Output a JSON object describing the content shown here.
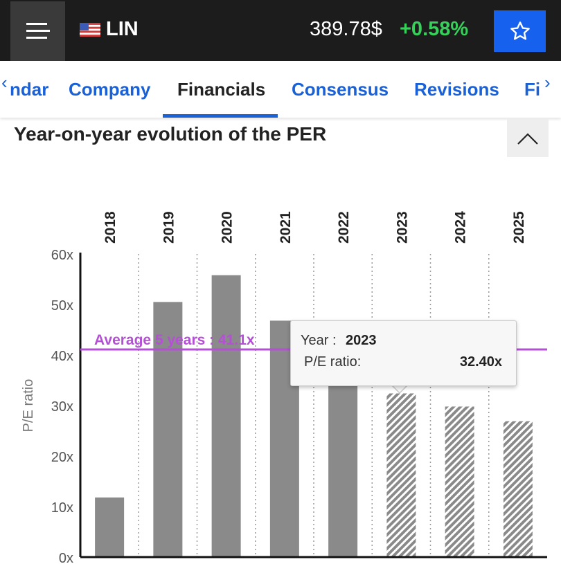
{
  "header": {
    "ticker": "LIN",
    "price": "389.78$",
    "change": "+0.58%"
  },
  "tabs": {
    "partial_left": "ndar",
    "items": [
      "Company",
      "Financials",
      "Consensus",
      "Revisions"
    ],
    "partial_right": "Fi",
    "active": "Financials"
  },
  "section": {
    "title": "Year-on-year evolution of the PER"
  },
  "tooltip": {
    "year_label": "Year :",
    "year": "2023",
    "ratio_label": "P/E ratio:",
    "ratio": "32.40x"
  },
  "colors": {
    "accent_blue": "#1662ef",
    "positive_green": "#36d05a",
    "bar_gray": "#8a8a8a",
    "average_purple": "#b44fd6"
  },
  "chart_data": {
    "type": "bar",
    "ylabel": "P/E ratio",
    "ylim": [
      0,
      60
    ],
    "yticks": [
      "0x",
      "10x",
      "20x",
      "30x",
      "40x",
      "50x",
      "60x"
    ],
    "categories": [
      "2018",
      "2019",
      "2020",
      "2021",
      "2022",
      "2023",
      "2024",
      "2025"
    ],
    "values": [
      11.8,
      50.5,
      55.8,
      46.8,
      36.0,
      32.4,
      29.8,
      26.9
    ],
    "estimates": [
      false,
      false,
      false,
      false,
      false,
      true,
      true,
      true
    ],
    "average": {
      "label": "Average 5 years : 41.1x",
      "value": 41.1
    }
  }
}
